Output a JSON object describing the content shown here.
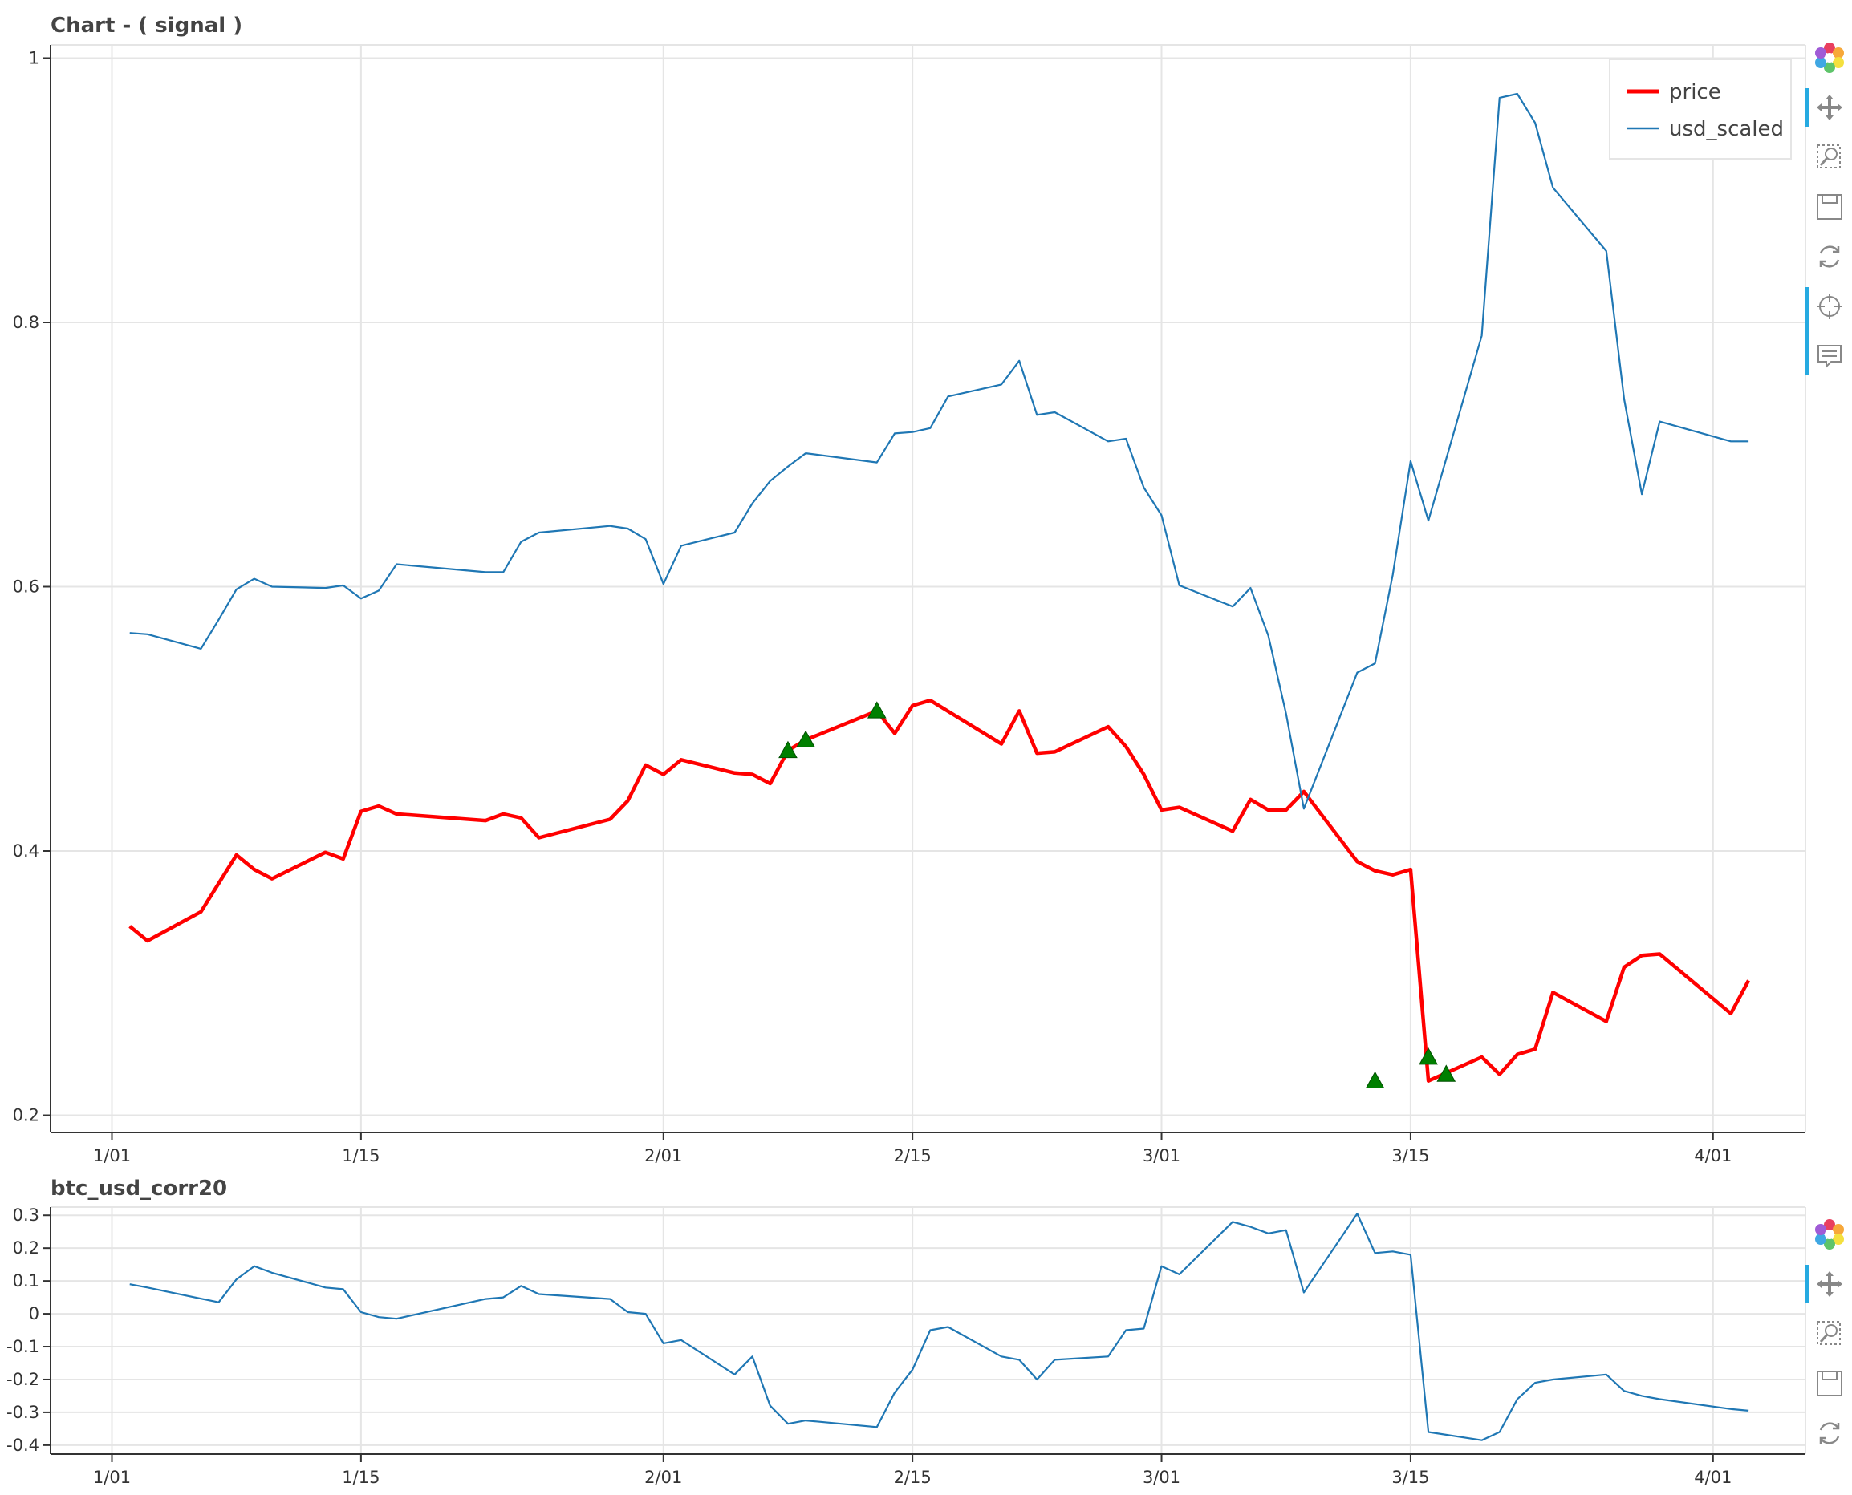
{
  "chart_data": [
    {
      "type": "line",
      "title": "Chart - ( signal )",
      "xlabel": "",
      "ylabel": "",
      "x_ticks": [
        "1/01",
        "1/15",
        "2/01",
        "2/15",
        "3/01",
        "3/15",
        "4/01"
      ],
      "y_ticks": [
        "0.2",
        "0.4",
        "0.6",
        "0.8",
        "1"
      ],
      "ylim": [
        0.19,
        1.01
      ],
      "grid": true,
      "legend_position": "top-right",
      "series": [
        {
          "name": "price",
          "color": "#ff0000",
          "x": [
            "1/02",
            "1/03",
            "1/06",
            "1/08",
            "1/09",
            "1/10",
            "1/13",
            "1/14",
            "1/15",
            "1/16",
            "1/17",
            "1/22",
            "1/23",
            "1/24",
            "1/25",
            "1/29",
            "1/30",
            "1/31",
            "2/01",
            "2/02",
            "2/05",
            "2/06",
            "2/07",
            "2/08",
            "2/09",
            "2/13",
            "2/14",
            "2/15",
            "2/16",
            "2/20",
            "2/21",
            "2/22",
            "2/23",
            "2/26",
            "2/27",
            "2/28",
            "3/01",
            "3/02",
            "3/05",
            "3/06",
            "3/07",
            "3/08",
            "3/09",
            "3/12",
            "3/13",
            "3/14",
            "3/15",
            "3/16",
            "3/19",
            "3/20",
            "3/21",
            "3/22",
            "3/23",
            "3/26",
            "3/27",
            "3/28",
            "3/29",
            "4/02",
            "4/03"
          ],
          "y": [
            0.343,
            0.332,
            0.354,
            0.397,
            0.386,
            0.379,
            0.399,
            0.394,
            0.43,
            0.434,
            0.428,
            0.423,
            0.428,
            0.425,
            0.41,
            0.424,
            0.438,
            0.465,
            0.458,
            0.469,
            0.459,
            0.458,
            0.451,
            0.476,
            0.484,
            0.506,
            0.489,
            0.51,
            0.514,
            0.481,
            0.506,
            0.474,
            0.475,
            0.494,
            0.479,
            0.458,
            0.431,
            0.433,
            0.415,
            0.439,
            0.431,
            0.431,
            0.445,
            0.392,
            0.385,
            0.382,
            0.386,
            0.226,
            0.244,
            0.231,
            0.246,
            0.25,
            0.293,
            0.271,
            0.312,
            0.321,
            0.322,
            0.277,
            0.302
          ]
        },
        {
          "name": "usd_scaled",
          "color": "#1f77b4",
          "x": [
            "1/02",
            "1/03",
            "1/06",
            "1/07",
            "1/08",
            "1/09",
            "1/10",
            "1/13",
            "1/14",
            "1/15",
            "1/16",
            "1/17",
            "1/22",
            "1/23",
            "1/24",
            "1/25",
            "1/29",
            "1/30",
            "1/31",
            "2/01",
            "2/02",
            "2/05",
            "2/06",
            "2/07",
            "2/08",
            "2/09",
            "2/13",
            "2/14",
            "2/15",
            "2/16",
            "2/17",
            "2/20",
            "2/21",
            "2/22",
            "2/23",
            "2/26",
            "2/27",
            "2/28",
            "3/01",
            "3/02",
            "3/05",
            "3/06",
            "3/07",
            "3/08",
            "3/09",
            "3/12",
            "3/13",
            "3/14",
            "3/15",
            "3/16",
            "3/19",
            "3/20",
            "3/21",
            "3/22",
            "3/23",
            "3/26",
            "3/27",
            "3/28",
            "3/29",
            "4/02",
            "4/03"
          ],
          "y": [
            0.565,
            0.564,
            0.553,
            0.575,
            0.598,
            0.606,
            0.6,
            0.599,
            0.601,
            0.591,
            0.597,
            0.617,
            0.611,
            0.611,
            0.634,
            0.641,
            0.646,
            0.644,
            0.636,
            0.602,
            0.631,
            0.641,
            0.663,
            0.68,
            0.691,
            0.701,
            0.694,
            0.716,
            0.717,
            0.72,
            0.744,
            0.753,
            0.771,
            0.73,
            0.732,
            0.71,
            0.712,
            0.675,
            0.654,
            0.601,
            0.585,
            0.599,
            0.563,
            0.504,
            0.432,
            0.535,
            0.542,
            0.609,
            0.695,
            0.65,
            0.79,
            0.97,
            0.973,
            0.951,
            0.902,
            0.854,
            0.742,
            0.67,
            0.725,
            0.71,
            0.71
          ]
        }
      ],
      "markers": {
        "shape": "triangle",
        "color": "#007f00",
        "x": [
          "2/08",
          "2/09",
          "2/13",
          "3/13",
          "3/16",
          "3/17"
        ],
        "y": [
          0.476,
          0.484,
          0.506,
          0.226,
          0.244,
          0.231
        ]
      }
    },
    {
      "type": "line",
      "title": "btc_usd_corr20",
      "xlabel": "",
      "ylabel": "",
      "x_ticks": [
        "1/01",
        "1/15",
        "2/01",
        "2/15",
        "3/01",
        "3/15",
        "4/01"
      ],
      "y_ticks": [
        "-0.4",
        "-0.3",
        "-0.2",
        "-0.1",
        "0",
        "0.1",
        "0.2",
        "0.3"
      ],
      "ylim": [
        -0.415,
        0.325
      ],
      "grid": true,
      "series": [
        {
          "color": "#1f77b4",
          "x": [
            "1/02",
            "1/03",
            "1/07",
            "1/08",
            "1/09",
            "1/10",
            "1/13",
            "1/14",
            "1/15",
            "1/16",
            "1/17",
            "1/22",
            "1/23",
            "1/24",
            "1/25",
            "1/29",
            "1/30",
            "1/31",
            "2/01",
            "2/02",
            "2/05",
            "2/06",
            "2/07",
            "2/08",
            "2/09",
            "2/13",
            "2/14",
            "2/15",
            "2/16",
            "2/17",
            "2/20",
            "2/21",
            "2/22",
            "2/23",
            "2/26",
            "2/27",
            "2/28",
            "3/01",
            "3/02",
            "3/05",
            "3/06",
            "3/07",
            "3/08",
            "3/09",
            "3/12",
            "3/13",
            "3/14",
            "3/15",
            "3/16",
            "3/19",
            "3/20",
            "3/21",
            "3/22",
            "3/23",
            "3/26",
            "3/27",
            "3/28",
            "3/29",
            "4/02",
            "4/03"
          ],
          "y": [
            0.09,
            0.08,
            0.035,
            0.105,
            0.145,
            0.125,
            0.08,
            0.075,
            0.005,
            -0.01,
            -0.015,
            0.045,
            0.05,
            0.085,
            0.06,
            0.045,
            0.005,
            0.0,
            -0.09,
            -0.08,
            -0.185,
            -0.13,
            -0.28,
            -0.335,
            -0.325,
            -0.345,
            -0.24,
            -0.17,
            -0.05,
            -0.04,
            -0.13,
            -0.14,
            -0.2,
            -0.14,
            -0.13,
            -0.05,
            -0.045,
            0.145,
            0.12,
            0.28,
            0.265,
            0.245,
            0.255,
            0.065,
            0.305,
            0.185,
            0.19,
            0.18,
            -0.36,
            -0.385,
            -0.36,
            -0.26,
            -0.21,
            -0.2,
            -0.185,
            -0.235,
            -0.25,
            -0.26,
            -0.29,
            -0.295
          ]
        }
      ]
    }
  ],
  "toolbar": {
    "logo": "bokeh-logo-icon",
    "tools": [
      "pan-icon",
      "box-zoom-icon",
      "save-icon",
      "reset-icon",
      "crosshair-icon",
      "hover-icon"
    ]
  }
}
